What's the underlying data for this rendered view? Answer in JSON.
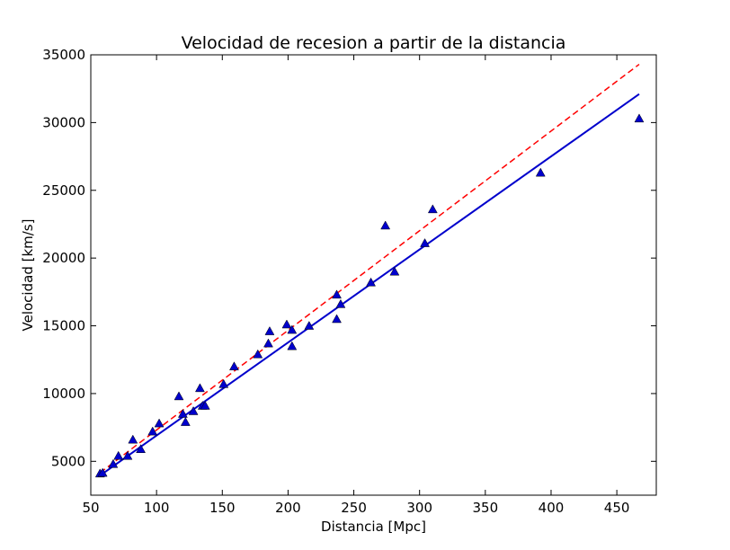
{
  "chart_data": {
    "type": "scatter",
    "title": "Velocidad de recesion a partir de la distancia",
    "xlabel": "Distancia [Mpc]",
    "ylabel": "Velocidad [km/s]",
    "xlim": [
      50,
      480
    ],
    "ylim": [
      2500,
      35000
    ],
    "xticks": [
      50,
      100,
      150,
      200,
      250,
      300,
      350,
      400,
      450
    ],
    "yticks": [
      5000,
      10000,
      15000,
      20000,
      25000,
      30000,
      35000
    ],
    "grid": false,
    "series": [
      {
        "marker": "triangle",
        "color": "#0000cc",
        "points": [
          [
            57,
            4100
          ],
          [
            59,
            4150
          ],
          [
            67,
            4800
          ],
          [
            71,
            5400
          ],
          [
            78,
            5400
          ],
          [
            82,
            6600
          ],
          [
            88,
            5900
          ],
          [
            97,
            7200
          ],
          [
            102,
            7800
          ],
          [
            117,
            9800
          ],
          [
            120,
            8500
          ],
          [
            122,
            7900
          ],
          [
            128,
            8700
          ],
          [
            133,
            10400
          ],
          [
            135,
            9100
          ],
          [
            137,
            9100
          ],
          [
            151,
            10700
          ],
          [
            159,
            12000
          ],
          [
            177,
            12900
          ],
          [
            185,
            13700
          ],
          [
            186,
            14600
          ],
          [
            199,
            15100
          ],
          [
            203,
            13500
          ],
          [
            203,
            14700
          ],
          [
            216,
            15000
          ],
          [
            237,
            17300
          ],
          [
            237,
            15500
          ],
          [
            240,
            16600
          ],
          [
            263,
            18200
          ],
          [
            274,
            22400
          ],
          [
            281,
            19000
          ],
          [
            304,
            21100
          ],
          [
            310,
            23600
          ],
          [
            392,
            26300
          ],
          [
            467,
            30300
          ]
        ]
      },
      {
        "type": "line",
        "style": "solid",
        "color": "#0000cc",
        "x": [
          57,
          467
        ],
        "y": [
          3950,
          32100
        ]
      },
      {
        "type": "line",
        "style": "dashed",
        "color": "#ff0000",
        "x": [
          57,
          467
        ],
        "y": [
          4150,
          34300
        ]
      }
    ]
  }
}
